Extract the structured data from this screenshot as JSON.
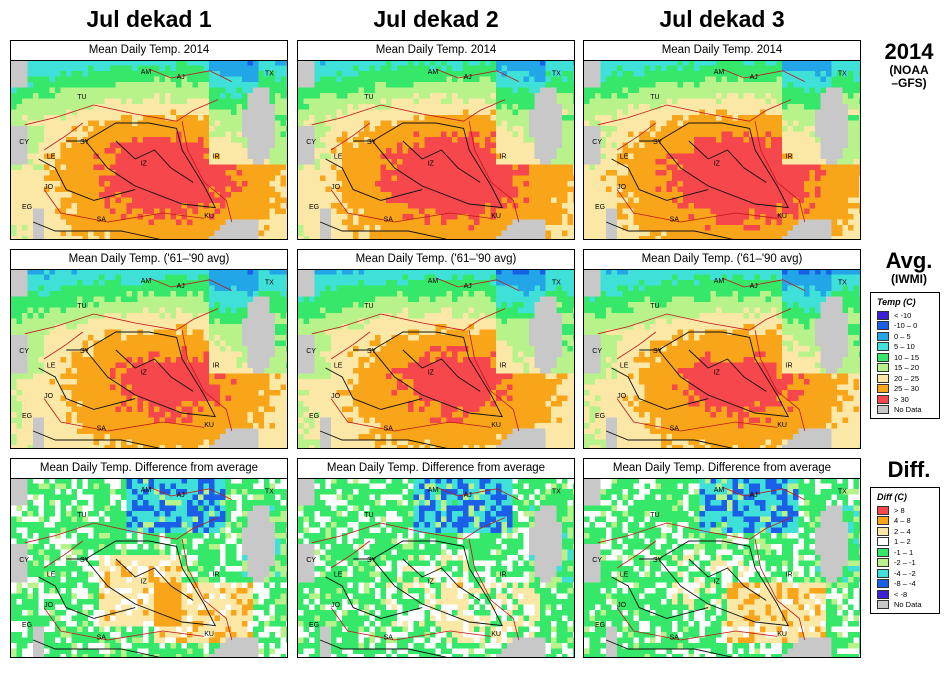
{
  "columns": [
    "Jul dekad 1",
    "Jul dekad 2",
    "Jul dekad 3"
  ],
  "rows": [
    {
      "id": "y2014",
      "panel_title": "Mean Daily Temp. 2014",
      "label": "2014",
      "sublabel": [
        "(NOAA",
        "–GFS)"
      ],
      "kind": "temp"
    },
    {
      "id": "avg",
      "panel_title": "Mean Daily Temp. ('61–'90 avg)",
      "label": "Avg.",
      "sublabel": [
        "(IWMI)"
      ],
      "kind": "temp"
    },
    {
      "id": "diff",
      "panel_title": "Mean Daily Temp. Difference from average",
      "label": "Diff.",
      "sublabel": [],
      "kind": "diff"
    }
  ],
  "map_labels": [
    "AM",
    "AJ",
    "TX",
    "TU",
    "SY",
    "IR",
    "CY",
    "LE",
    "IZ",
    "JO",
    "EG",
    "SA",
    "KU"
  ],
  "temp_legend": {
    "title": "Temp (C)",
    "items": [
      {
        "label": "< -10",
        "color": "#3c1fd6"
      },
      {
        "label": "-10 – 0",
        "color": "#1b5fe8"
      },
      {
        "label": "0 – 5",
        "color": "#22a6e8"
      },
      {
        "label": "5 – 10",
        "color": "#3fe0d8"
      },
      {
        "label": "10 – 15",
        "color": "#35e86a"
      },
      {
        "label": "15 – 20",
        "color": "#b8f28a"
      },
      {
        "label": "20 – 25",
        "color": "#fbe7a6"
      },
      {
        "label": "25 – 30",
        "color": "#f9a51a"
      },
      {
        "label": "> 30",
        "color": "#f5474c"
      },
      {
        "label": "No Data",
        "color": "#c8c8c8"
      }
    ]
  },
  "diff_legend": {
    "title": "Diff (C)",
    "items": [
      {
        "label": "> 8",
        "color": "#f5474c"
      },
      {
        "label": "4 – 8",
        "color": "#f9a51a"
      },
      {
        "label": "2 – 4",
        "color": "#fbe7a6"
      },
      {
        "label": "1 – 2",
        "color": "#ffffff"
      },
      {
        "label": "-1 – 1",
        "color": "#35e86a"
      },
      {
        "label": "-2 – -1",
        "color": "#b8f28a"
      },
      {
        "label": "-4 – -2",
        "color": "#3fe0d8"
      },
      {
        "label": "-8 – -4",
        "color": "#1b5fe8"
      },
      {
        "label": "< -8",
        "color": "#3c1fd6"
      },
      {
        "label": "No Data",
        "color": "#c8c8c8"
      }
    ]
  }
}
